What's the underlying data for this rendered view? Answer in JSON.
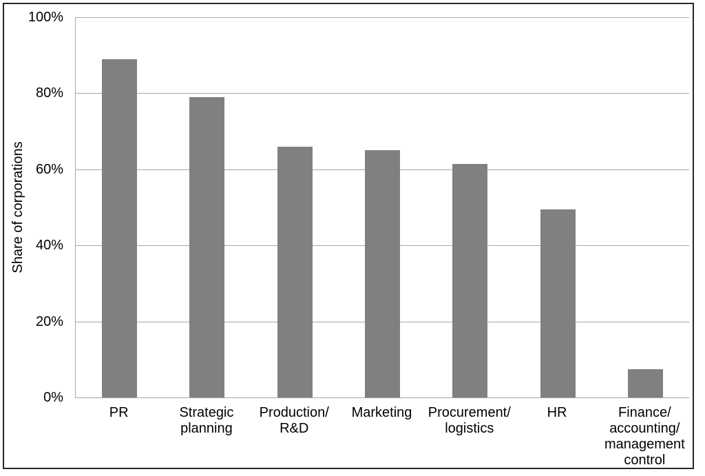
{
  "chart_data": {
    "type": "bar",
    "title": "",
    "xlabel": "",
    "ylabel": "Share of corporations",
    "categories": [
      "PR",
      "Strategic planning",
      "Production/R&D",
      "Marketing",
      "Procurement/logistics",
      "HR",
      "Finance/accounting/management control"
    ],
    "category_lines": [
      [
        "PR"
      ],
      [
        "Strategic",
        "planning"
      ],
      [
        "Production/",
        "R&D"
      ],
      [
        "Marketing"
      ],
      [
        "Procurement/",
        "logistics"
      ],
      [
        "HR"
      ],
      [
        "Finance/",
        "accounting/",
        "management",
        "control"
      ]
    ],
    "values": [
      89,
      79,
      66,
      65,
      61.5,
      49.5,
      7.5
    ],
    "unit": "%",
    "ylim": [
      0,
      100
    ],
    "ytick_interval": 20,
    "ytick_labels": [
      "0%",
      "20%",
      "40%",
      "60%",
      "80%",
      "100%"
    ],
    "grid": "horizontal",
    "legend": "none",
    "colors": {
      "bar_fill": "#808080",
      "gridline": "#a6a6a6",
      "axis_line": "#a6a6a6",
      "text": "#000000",
      "frame_border": "#262626",
      "background": "#ffffff"
    }
  }
}
